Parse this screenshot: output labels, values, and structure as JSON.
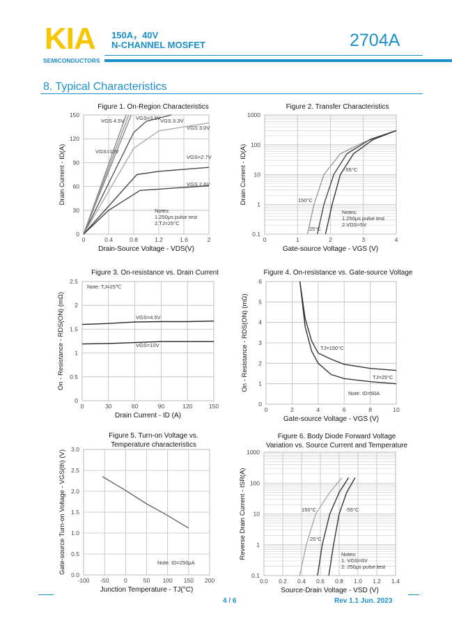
{
  "header": {
    "logo": "KIA",
    "logo_sub": "SEMICONDUCTORS",
    "spec_line1": "150A，40V",
    "spec_line2": "N-CHANNEL MOSFET",
    "part_number": "2704A",
    "brand_color": "#1a8fc9",
    "logo_color": "#f7c600"
  },
  "section": {
    "title": "8.  Typical Characteristics"
  },
  "footer": {
    "page": "4 / 6",
    "revision": "Rev 1.1    Jun. 2023"
  },
  "chart_data": [
    {
      "type": "line",
      "title": [
        "Figure 1. On-Region Characteristics"
      ],
      "xlabel": "Drain-Source Voltage  -  VDS(V)",
      "ylabel": "Drain Current  -  ID(A)",
      "xlim": [
        0,
        2
      ],
      "ylim": [
        0,
        150
      ],
      "xticks": [
        "0",
        "0.4",
        "0.8",
        "1.2",
        "1.6",
        "2"
      ],
      "yticks": [
        "0",
        "30",
        "60",
        "90",
        "120",
        "150"
      ],
      "grid": true,
      "notes": [
        "Notes:",
        "1.250μs pulse test",
        "2.TJ=25°C"
      ],
      "series": [
        {
          "name": "VGS=10V",
          "points": [
            [
              0,
              0
            ],
            [
              0.68,
              150
            ]
          ]
        },
        {
          "name": "VGS 4.5V",
          "points": [
            [
              0,
              0
            ],
            [
              0.72,
              150
            ]
          ]
        },
        {
          "name": "VGS=3.5V",
          "points": [
            [
              0,
              0
            ],
            [
              0.76,
              150
            ]
          ]
        },
        {
          "name": "VGS 3.3V",
          "points": [
            [
              0,
              0
            ],
            [
              0.8,
              128
            ],
            [
              1.0,
              142
            ],
            [
              1.4,
              150
            ]
          ]
        },
        {
          "name": "VGS 3.0V",
          "points": [
            [
              0,
              0
            ],
            [
              0.8,
              108
            ],
            [
              1.2,
              130
            ],
            [
              2,
              140
            ]
          ]
        },
        {
          "name": "VGS=2.7V",
          "points": [
            [
              0,
              0
            ],
            [
              0.85,
              75
            ],
            [
              1.2,
              79
            ],
            [
              2,
              84
            ]
          ]
        },
        {
          "name": "VGS 2.6V",
          "points": [
            [
              0,
              0
            ],
            [
              0.4,
              30
            ],
            [
              0.9,
              55
            ],
            [
              2,
              61
            ]
          ]
        }
      ]
    },
    {
      "type": "line",
      "title": [
        "Figure 2. Transfer Characteristics"
      ],
      "xlabel": "Gate-source Voltage - VGS (V)",
      "ylabel": "Drain Current  -  ID(A)",
      "xlim": [
        0,
        4
      ],
      "ylim": [
        0.1,
        1000
      ],
      "yscale": "log",
      "xticks": [
        "0",
        "1",
        "2",
        "3",
        "4"
      ],
      "yticks": [
        "0.1",
        "1",
        "10",
        "100",
        "1000"
      ],
      "grid": true,
      "notes": [
        "Notes:",
        "1.250μs pulse test",
        "2.VDS=5V"
      ],
      "series": [
        {
          "name": "150°C",
          "points": [
            [
              1.3,
              0.1
            ],
            [
              1.5,
              1
            ],
            [
              1.8,
              10
            ],
            [
              2.3,
              50
            ],
            [
              3,
              120
            ],
            [
              4,
              300
            ]
          ]
        },
        {
          "name": "25°C",
          "points": [
            [
              1.6,
              0.1
            ],
            [
              1.8,
              1
            ],
            [
              2.1,
              10
            ],
            [
              2.5,
              50
            ],
            [
              3.2,
              150
            ],
            [
              4,
              300
            ]
          ]
        },
        {
          "name": "-55°C",
          "points": [
            [
              1.85,
              0.1
            ],
            [
              2.05,
              1
            ],
            [
              2.3,
              10
            ],
            [
              2.7,
              50
            ],
            [
              3.3,
              150
            ],
            [
              4,
              300
            ]
          ]
        }
      ]
    },
    {
      "type": "line",
      "title": [
        "Figure 3. On-resistance vs. Drain Current"
      ],
      "xlabel": "Drain Current - ID (A)",
      "ylabel": "On - Resistance - RDS(ON) (mΩ)",
      "xlim": [
        0,
        150
      ],
      "ylim": [
        0,
        2.5
      ],
      "xticks": [
        "0",
        "30",
        "60",
        "90",
        "120",
        "150"
      ],
      "yticks": [
        "0",
        "0.5",
        "1",
        "1.5",
        "2",
        "2.5"
      ],
      "grid": true,
      "notes": [
        "Note:  TJ=25℃"
      ],
      "series": [
        {
          "name": "VGS=4.5V",
          "points": [
            [
              0,
              1.6
            ],
            [
              30,
              1.62
            ],
            [
              60,
              1.65
            ],
            [
              90,
              1.66
            ],
            [
              120,
              1.66
            ],
            [
              150,
              1.67
            ]
          ]
        },
        {
          "name": "VGS=10V",
          "points": [
            [
              0,
              1.19
            ],
            [
              30,
              1.2
            ],
            [
              60,
              1.22
            ],
            [
              90,
              1.24
            ],
            [
              120,
              1.24
            ],
            [
              150,
              1.24
            ]
          ]
        }
      ]
    },
    {
      "type": "line",
      "title": [
        "Figure 4. On-resistance vs. Gate-source Voltage"
      ],
      "xlabel": "Gate-source Voltage - VGS (V)",
      "ylabel": "On - Resistance - RDS(ON) (mΩ)",
      "xlim": [
        0,
        10
      ],
      "ylim": [
        0,
        6
      ],
      "xticks": [
        "0",
        "2",
        "4",
        "6",
        "8",
        "10"
      ],
      "yticks": [
        "0",
        "1",
        "2",
        "3",
        "4",
        "5",
        "6"
      ],
      "grid": true,
      "notes": [
        "Note: ID=50A"
      ],
      "series": [
        {
          "name": "TJ=150°C",
          "points": [
            [
              2.6,
              6
            ],
            [
              3,
              4.2
            ],
            [
              3.5,
              3.1
            ],
            [
              4,
              2.5
            ],
            [
              5,
              2.2
            ],
            [
              6,
              1.95
            ],
            [
              8,
              1.75
            ],
            [
              10,
              1.65
            ]
          ]
        },
        {
          "name": "TJ=25°C",
          "points": [
            [
              2.6,
              6
            ],
            [
              3,
              3.8
            ],
            [
              3.5,
              2.6
            ],
            [
              4,
              2
            ],
            [
              5,
              1.45
            ],
            [
              6,
              1.25
            ],
            [
              8,
              1.1
            ],
            [
              10,
              1.0
            ]
          ]
        }
      ]
    },
    {
      "type": "line",
      "title": [
        "Figure 5. Turn-on Voltage vs.",
        "Temperature characteristics"
      ],
      "xlabel": "Junction Temperature - TJ(°C)",
      "ylabel": "Gate-source Turn-on Voltage - VGS(th) (V)",
      "xlim": [
        -100,
        200
      ],
      "ylim": [
        0,
        3
      ],
      "xticks": [
        "-100",
        "-50",
        "0",
        "50",
        "100",
        "150",
        "200"
      ],
      "yticks": [
        "0.0",
        "0.5",
        "1.0",
        "1.5",
        "2.0",
        "2.5",
        "3.0"
      ],
      "grid": true,
      "notes": [
        "Note: ID=250μA"
      ],
      "series": [
        {
          "points": [
            [
              -55,
              2.35
            ],
            [
              0,
              2.02
            ],
            [
              50,
              1.7
            ],
            [
              100,
              1.42
            ],
            [
              150,
              1.12
            ]
          ]
        }
      ]
    },
    {
      "type": "line",
      "title": [
        "Figure 6. Body Diode Forward Voltage",
        "Variation vs. Source Current and Temperature"
      ],
      "xlabel": "Source-Drain Voltage - VSD (V)",
      "ylabel": "Reverse Drain Current - ISR(A)",
      "xlim": [
        0,
        1.4
      ],
      "ylim": [
        0.1,
        1000
      ],
      "yscale": "log",
      "xticks": [
        "0.0",
        "0.2",
        "0.4",
        "0.6",
        "0.8",
        "1.0",
        "1.2",
        "1.4"
      ],
      "yticks": [
        "0.1",
        "1",
        "10",
        "100",
        "1000"
      ],
      "grid": true,
      "notes": [
        "Notes:",
        "1. VGS=0V",
        "2. 250μs pulse test"
      ],
      "series": [
        {
          "name": "150°C",
          "points": [
            [
              0.38,
              0.1
            ],
            [
              0.45,
              1
            ],
            [
              0.55,
              10
            ],
            [
              0.7,
              50
            ],
            [
              0.83,
              150
            ]
          ]
        },
        {
          "name": "25°C",
          "points": [
            [
              0.57,
              0.1
            ],
            [
              0.62,
              1
            ],
            [
              0.7,
              10
            ],
            [
              0.8,
              50
            ],
            [
              0.9,
              150
            ]
          ]
        },
        {
          "name": "-55°C",
          "points": [
            [
              0.69,
              0.1
            ],
            [
              0.74,
              1
            ],
            [
              0.8,
              10
            ],
            [
              0.88,
              50
            ],
            [
              0.97,
              150
            ]
          ]
        }
      ]
    }
  ]
}
